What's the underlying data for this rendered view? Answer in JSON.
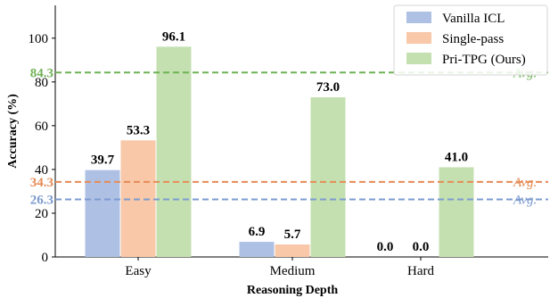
{
  "chart_data": {
    "type": "bar",
    "categories": [
      "Easy",
      "Medium",
      "Hard"
    ],
    "series": [
      {
        "name": "Vanilla ICL",
        "values": [
          39.7,
          6.9,
          0.0
        ],
        "color": "#aec1e4",
        "avg_color": "#7c9bd0"
      },
      {
        "name": "Single-pass",
        "values": [
          53.3,
          5.7,
          0.0
        ],
        "color": "#f8c8a8",
        "avg_color": "#e58b55"
      },
      {
        "name": "Pri-TPG (Ours)",
        "values": [
          96.1,
          73.0,
          41.0
        ],
        "color": "#c4e0b0",
        "avg_color": "#6fb257"
      }
    ],
    "data_labels": [
      [
        "39.7",
        "6.9",
        "0.0"
      ],
      [
        "53.3",
        "5.7",
        "0.0"
      ],
      [
        "96.1",
        "73.0",
        "41.0"
      ]
    ],
    "averages": [
      {
        "value": 26.3,
        "label": "26.3",
        "text": "Avg."
      },
      {
        "value": 34.3,
        "label": "34.3",
        "text": "Avg."
      },
      {
        "value": 84.3,
        "label": "84.3",
        "text": "Avg."
      }
    ],
    "xlabel": "Reasoning Depth",
    "ylabel": "Accuracy (%)",
    "ylim": [
      0,
      115
    ],
    "yticks": [
      0,
      20,
      40,
      60,
      80,
      100
    ],
    "legend_position": "top-right",
    "grid": false
  }
}
